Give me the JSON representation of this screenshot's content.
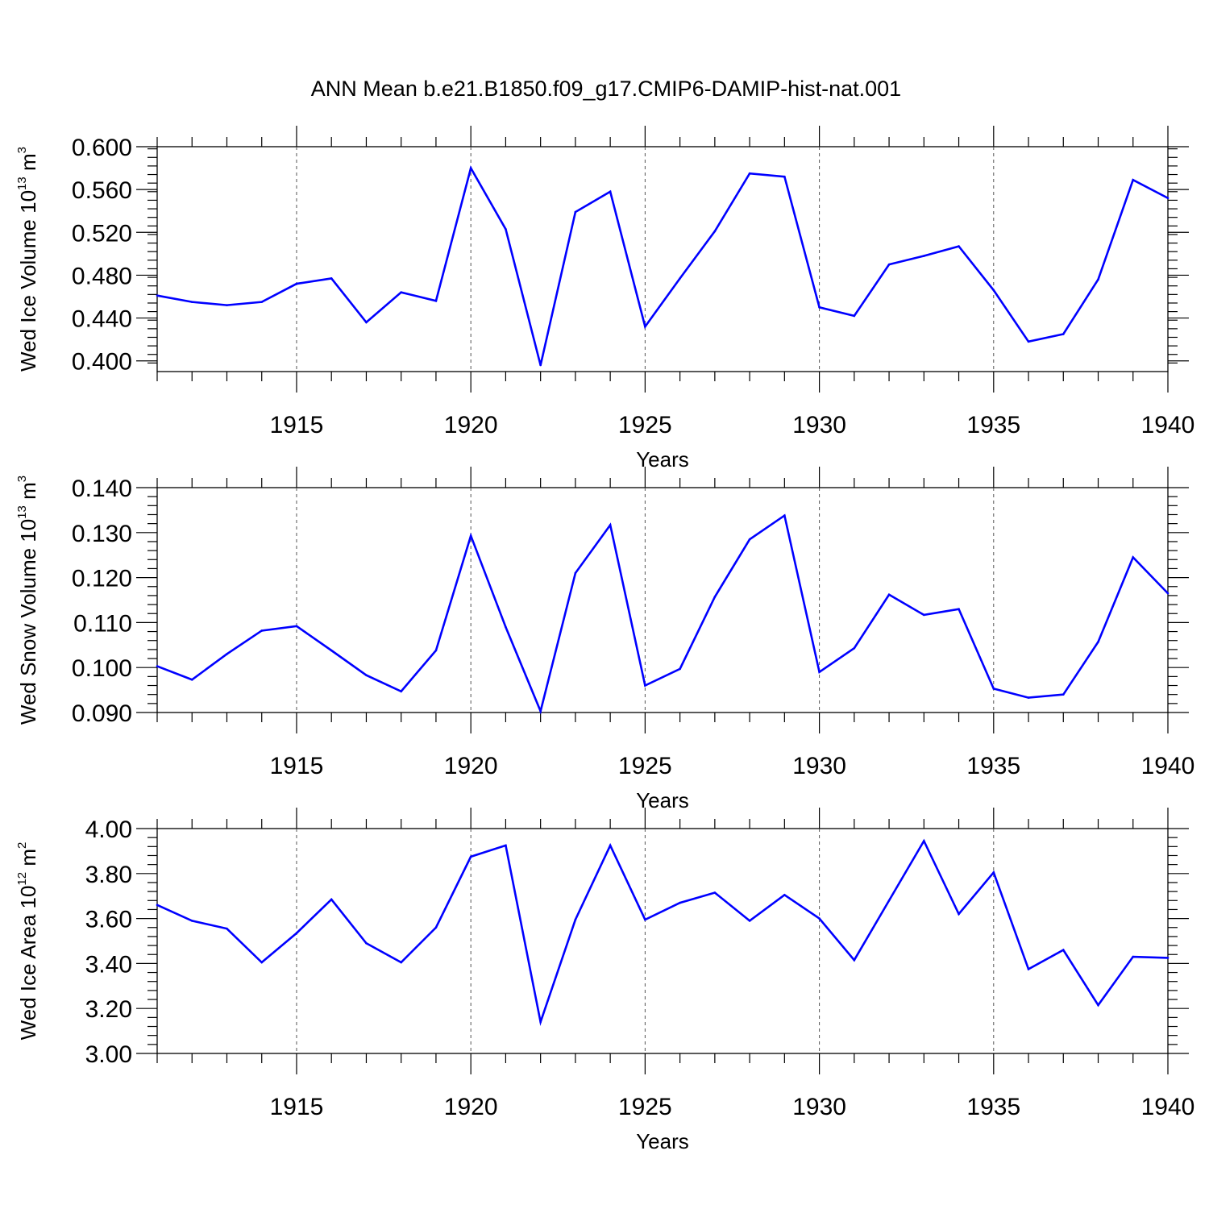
{
  "figure": {
    "title": "ANN Mean b.e21.B1850.f09_g17.CMIP6-DAMIP-hist-nat.001"
  },
  "colors": {
    "line": "#0000ff",
    "axes": "#000000",
    "grid": "#555555"
  },
  "chart_data": [
    {
      "type": "line",
      "ylabel": "Wed Ice Volume 10",
      "ylabel_exp": "13",
      "ylabel_unit": " m",
      "ylabel_unit_exp": "3",
      "xlabel": "Years",
      "xlim": [
        1911,
        1940
      ],
      "ylim": [
        0.39,
        0.6
      ],
      "yticks": [
        0.4,
        0.44,
        0.48,
        0.52,
        0.56,
        0.6
      ],
      "ytick_labels": [
        "0.400",
        "0.440",
        "0.480",
        "0.520",
        "0.560",
        "0.600"
      ],
      "xticks": [
        1915,
        1920,
        1925,
        1930,
        1935,
        1940
      ],
      "xtick_labels": [
        "1915",
        "1920",
        "1925",
        "1930",
        "1935",
        "1940"
      ],
      "grid": "x-dashed",
      "x": [
        1911,
        1912,
        1913,
        1914,
        1915,
        1916,
        1917,
        1918,
        1919,
        1920,
        1921,
        1922,
        1923,
        1924,
        1925,
        1926,
        1927,
        1928,
        1929,
        1930,
        1931,
        1932,
        1933,
        1934,
        1935,
        1936,
        1937,
        1938,
        1939,
        1940
      ],
      "series": [
        {
          "values": [
            0.461,
            0.455,
            0.452,
            0.455,
            0.472,
            0.477,
            0.436,
            0.464,
            0.456,
            0.58,
            0.523,
            0.396,
            0.539,
            0.558,
            0.432,
            0.477,
            0.521,
            0.575,
            0.572,
            0.45,
            0.442,
            0.49,
            0.498,
            0.507,
            0.466,
            0.418,
            0.425,
            0.476,
            0.569,
            0.552
          ]
        }
      ]
    },
    {
      "type": "line",
      "ylabel": "Wed Snow Volume 10",
      "ylabel_exp": "13",
      "ylabel_unit": " m",
      "ylabel_unit_exp": "3",
      "xlabel": "Years",
      "xlim": [
        1911,
        1940
      ],
      "ylim": [
        0.09,
        0.14
      ],
      "yticks": [
        0.09,
        0.1,
        0.11,
        0.12,
        0.13,
        0.14
      ],
      "ytick_labels": [
        "0.090",
        "0.100",
        "0.110",
        "0.120",
        "0.130",
        "0.140"
      ],
      "xticks": [
        1915,
        1920,
        1925,
        1930,
        1935,
        1940
      ],
      "xtick_labels": [
        "1915",
        "1920",
        "1925",
        "1930",
        "1935",
        "1940"
      ],
      "grid": "x-dashed",
      "x": [
        1911,
        1912,
        1913,
        1914,
        1915,
        1916,
        1917,
        1918,
        1919,
        1920,
        1921,
        1922,
        1923,
        1924,
        1925,
        1926,
        1927,
        1928,
        1929,
        1930,
        1931,
        1932,
        1933,
        1934,
        1935,
        1936,
        1937,
        1938,
        1939,
        1940
      ],
      "series": [
        {
          "values": [
            0.1003,
            0.0973,
            0.103,
            0.1082,
            0.1092,
            0.1038,
            0.0983,
            0.0947,
            0.1038,
            0.1293,
            0.109,
            0.0903,
            0.121,
            0.1317,
            0.096,
            0.0997,
            0.1157,
            0.1285,
            0.1338,
            0.099,
            0.1043,
            0.1162,
            0.1117,
            0.113,
            0.0953,
            0.0933,
            0.094,
            0.1057,
            0.1245,
            0.1165
          ]
        }
      ]
    },
    {
      "type": "line",
      "ylabel": "Wed Ice Area 10",
      "ylabel_exp": "12",
      "ylabel_unit": " m",
      "ylabel_unit_exp": "2",
      "xlabel": "Years",
      "xlim": [
        1911,
        1940
      ],
      "ylim": [
        3.0,
        4.0
      ],
      "yticks": [
        3.0,
        3.2,
        3.4,
        3.6,
        3.8,
        4.0
      ],
      "ytick_labels": [
        "3.00",
        "3.20",
        "3.40",
        "3.60",
        "3.80",
        "4.00"
      ],
      "xticks": [
        1915,
        1920,
        1925,
        1930,
        1935,
        1940
      ],
      "xtick_labels": [
        "1915",
        "1920",
        "1925",
        "1930",
        "1935",
        "1940"
      ],
      "grid": "x-dashed",
      "x": [
        1911,
        1912,
        1913,
        1914,
        1915,
        1916,
        1917,
        1918,
        1919,
        1920,
        1921,
        1922,
        1923,
        1924,
        1925,
        1926,
        1927,
        1928,
        1929,
        1930,
        1931,
        1932,
        1933,
        1934,
        1935,
        1936,
        1937,
        1938,
        1939,
        1940
      ],
      "series": [
        {
          "values": [
            3.66,
            3.59,
            3.555,
            3.405,
            3.535,
            3.685,
            3.49,
            3.405,
            3.56,
            3.875,
            3.925,
            3.14,
            3.595,
            3.925,
            3.595,
            3.67,
            3.715,
            3.59,
            3.705,
            3.6,
            3.415,
            3.68,
            3.945,
            3.62,
            3.805,
            3.375,
            3.46,
            3.215,
            3.43,
            3.425
          ]
        }
      ]
    }
  ]
}
